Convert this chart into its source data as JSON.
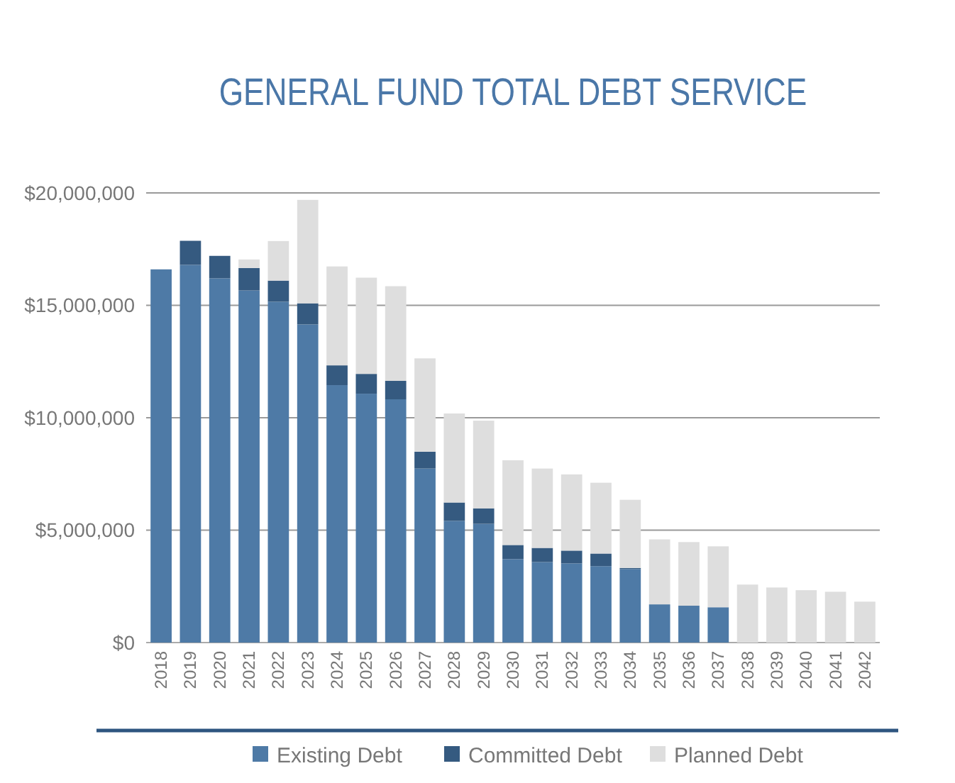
{
  "chart_data": {
    "type": "bar",
    "title": "GENERAL FUND TOTAL DEBT SERVICE",
    "stacked": true,
    "grid": "y",
    "legend": "bottom",
    "categories": [
      "2018",
      "2019",
      "2020",
      "2021",
      "2022",
      "2023",
      "2024",
      "2025",
      "2026",
      "2027",
      "2028",
      "2029",
      "2030",
      "2031",
      "2032",
      "2033",
      "2034",
      "2035",
      "2036",
      "2037",
      "2038",
      "2039",
      "2040",
      "2041",
      "2042"
    ],
    "ylim": [
      0,
      20000000
    ],
    "yticks": [
      {
        "value": 0,
        "label": "$0"
      },
      {
        "value": 5000000,
        "label": "$5,000,000"
      },
      {
        "value": 10000000,
        "label": "$10,000,000"
      },
      {
        "value": 15000000,
        "label": "$15,000,000"
      },
      {
        "value": 20000000,
        "label": "$20,000,000"
      }
    ],
    "series": [
      {
        "name": "Existing Debt",
        "color": "#4e7aa6",
        "values": [
          16600000,
          16800000,
          16200000,
          15660000,
          15160000,
          14150000,
          11450000,
          11070000,
          10820000,
          7740000,
          5410000,
          5280000,
          3710000,
          3580000,
          3520000,
          3400000,
          3270000,
          1700000,
          1640000,
          1570000,
          0,
          0,
          0,
          0,
          0
        ]
      },
      {
        "name": "Committed Debt",
        "color": "#355a80",
        "values": [
          0,
          1070000,
          1000000,
          1000000,
          940000,
          940000,
          880000,
          880000,
          820000,
          750000,
          820000,
          690000,
          630000,
          630000,
          570000,
          560000,
          50000,
          0,
          0,
          0,
          0,
          0,
          0,
          0,
          0
        ]
      },
      {
        "name": "Planned Debt",
        "color": "#dedede",
        "values": [
          0,
          0,
          0,
          380000,
          1760000,
          4600000,
          4400000,
          4280000,
          4210000,
          4150000,
          3960000,
          3900000,
          3770000,
          3530000,
          3390000,
          3150000,
          3030000,
          2890000,
          2830000,
          2710000,
          2580000,
          2450000,
          2330000,
          2260000,
          1820000
        ]
      }
    ]
  }
}
